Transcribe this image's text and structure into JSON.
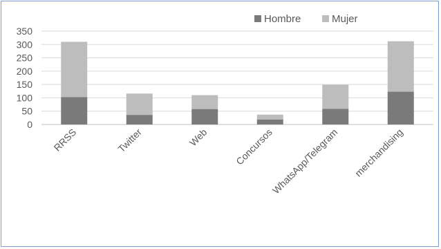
{
  "chart_data": {
    "type": "bar",
    "stacked": true,
    "categories": [
      "RRSS",
      "Twitter",
      "Web",
      "Concursos",
      "WhatsApp/Telegram",
      "merchandising"
    ],
    "series": [
      {
        "name": "Hombre",
        "color": "#7a7a7a",
        "values": [
          103,
          36,
          58,
          19,
          59,
          123
        ]
      },
      {
        "name": "Mujer",
        "color": "#bdbdbd",
        "values": [
          207,
          80,
          52,
          18,
          90,
          189
        ]
      }
    ],
    "ylim": [
      0,
      350
    ],
    "yticks": [
      0,
      50,
      100,
      150,
      200,
      250,
      300,
      350
    ],
    "grid": true,
    "legend": "top-right"
  }
}
